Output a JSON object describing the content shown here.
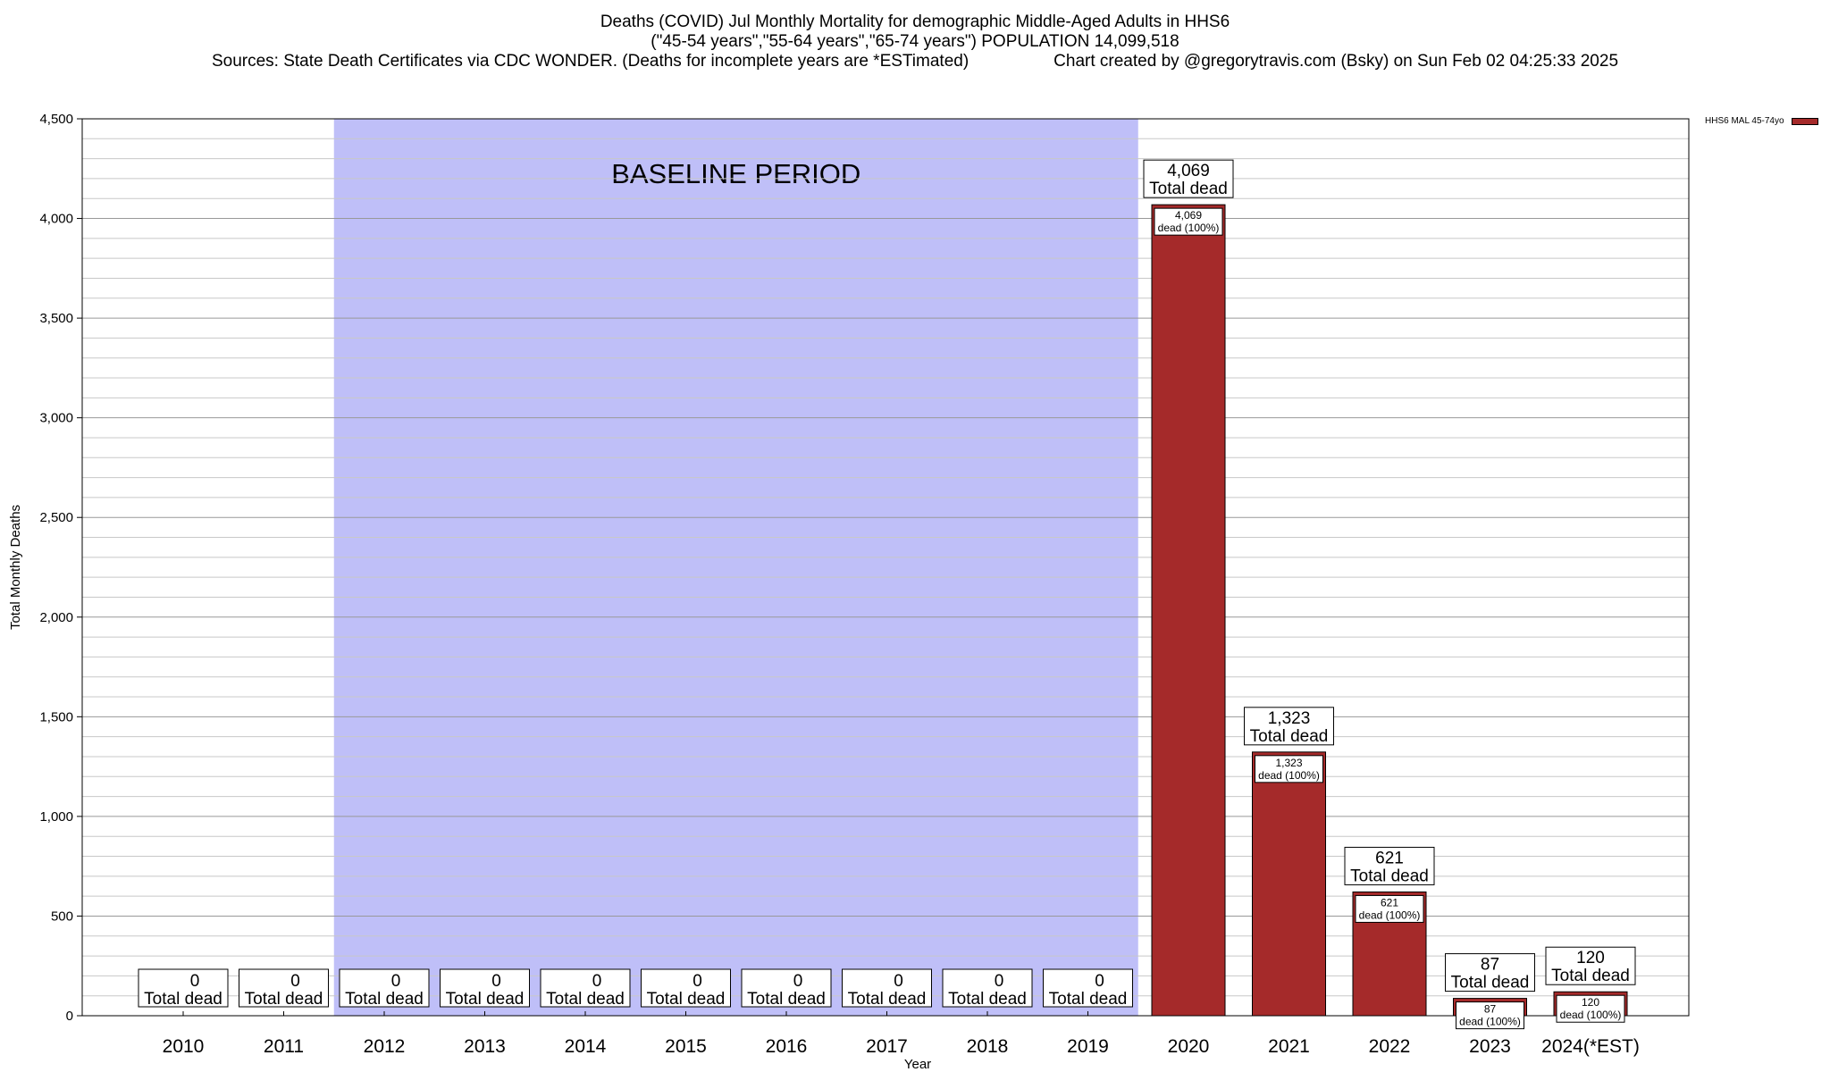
{
  "header": {
    "title_line1": "Deaths (COVID) Jul Monthly Mortality for demographic Middle-Aged Adults in HHS6",
    "title_line2": "(\"45-54 years\",\"55-64 years\",\"65-74 years\") POPULATION 14,099,518",
    "sources": "Sources: State Death Certificates via CDC WONDER. (Deaths for incomplete years are *ESTimated)",
    "credit": "Chart created by @gregorytravis.com (Bsky) on Sun Feb 02 04:25:33 2025"
  },
  "chart_data": {
    "type": "bar",
    "categories": [
      "2010",
      "2011",
      "2012",
      "2013",
      "2014",
      "2015",
      "2016",
      "2017",
      "2018",
      "2019",
      "2020",
      "2021",
      "2022",
      "2023",
      "2024(*EST)"
    ],
    "series": [
      {
        "name": "HHS6 MAL 45-74yo",
        "color": "#a52a2a",
        "values": [
          0,
          0,
          0,
          0,
          0,
          0,
          0,
          0,
          0,
          0,
          4069,
          1323,
          621,
          87,
          120
        ]
      }
    ],
    "value_labels": [
      "0",
      "0",
      "0",
      "0",
      "0",
      "0",
      "0",
      "0",
      "0",
      "0",
      "4,069",
      "1,323",
      "621",
      "87",
      "120"
    ],
    "total_label_text": "Total dead",
    "inner_label_text": "dead (100%)",
    "xlabel": "Year",
    "ylabel": "Total Monthly Deaths",
    "ylim": [
      0,
      4500
    ],
    "yticks": [
      0,
      500,
      1000,
      1500,
      2000,
      2500,
      3000,
      3500,
      4000,
      4500
    ],
    "ytick_labels": [
      "0",
      "500",
      "1,000",
      "1,500",
      "2,000",
      "2,500",
      "3,000",
      "3,500",
      "4,000",
      "4,500"
    ],
    "minor_step": 100,
    "grid": true,
    "legend_position": "top-right",
    "baseline_period": {
      "label": "BASELINE PERIOD",
      "from": "2012",
      "to": "2019",
      "color": "#bfbff8"
    },
    "bar_color": "#a52a2a"
  }
}
